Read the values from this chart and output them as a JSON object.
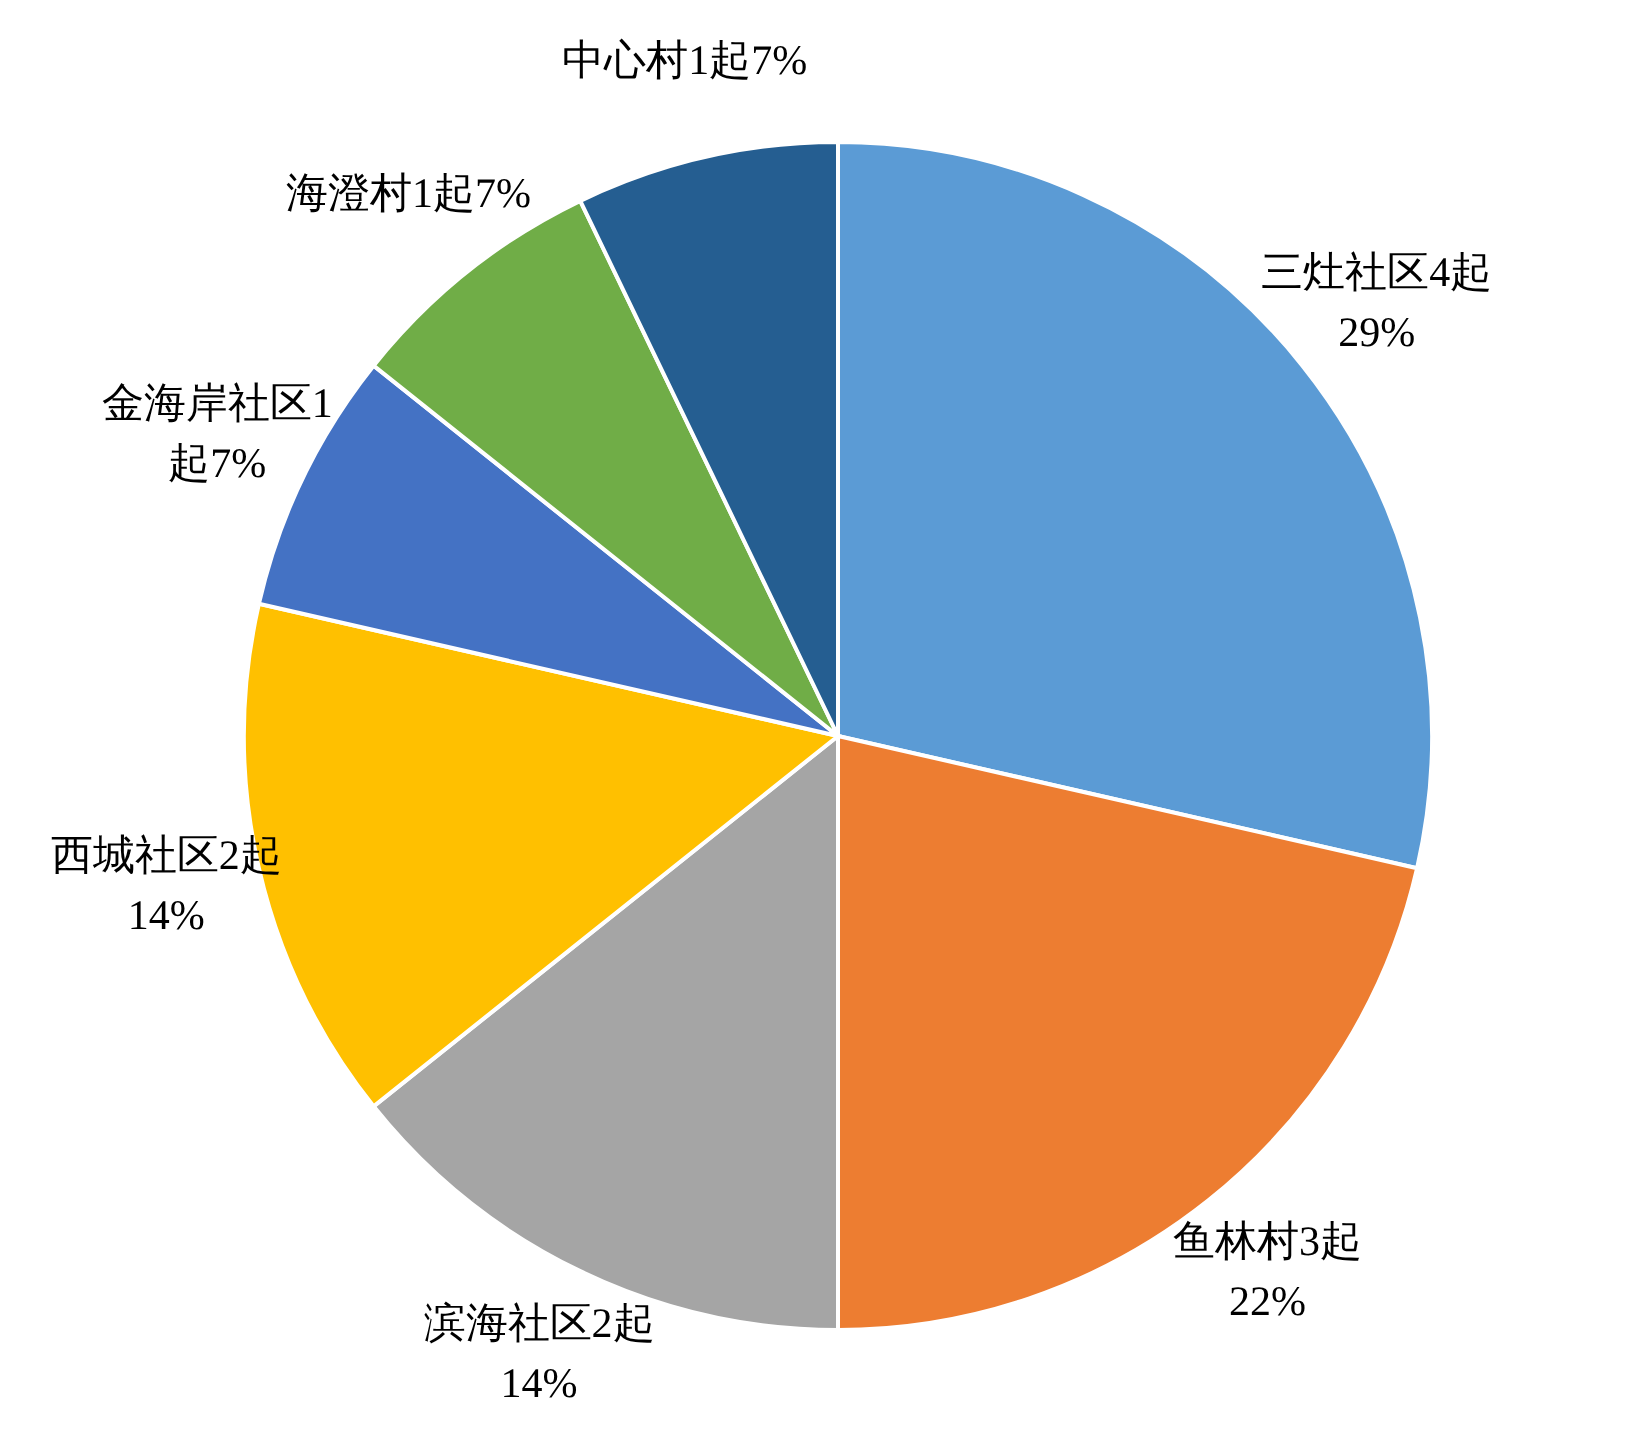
{
  "chart_data": {
    "type": "pie",
    "categories": [
      "三灶社区",
      "鱼林村",
      "滨海社区",
      "西城社区",
      "金海岸社区",
      "海澄村",
      "中心村"
    ],
    "values": [
      4,
      3,
      2,
      2,
      1,
      1,
      1
    ],
    "value_labels": [
      "4起\n29%",
      "3起\n22%",
      "2起\n14%",
      "2起\n14%",
      "1\n起7%",
      "1起7%",
      "1起7%"
    ],
    "colors": [
      "#5b9bd5",
      "#ed7d31",
      "#a5a5a5",
      "#ffc000",
      "#4472c4",
      "#70ad47",
      "#255e91"
    ]
  }
}
